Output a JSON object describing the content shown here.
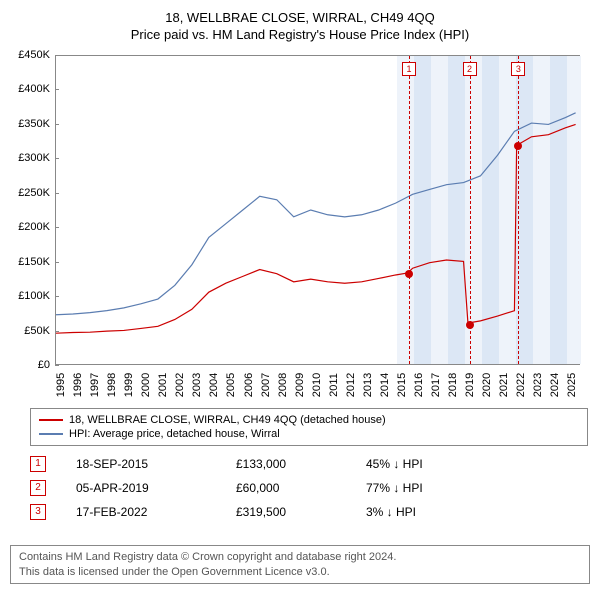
{
  "title": "18, WELLBRAE CLOSE, WIRRAL, CH49 4QQ",
  "subtitle": "Price paid vs. HM Land Registry's House Price Index (HPI)",
  "chart": {
    "ylim": [
      0,
      450000
    ],
    "ytick_step": 50000,
    "yticks": [
      "£0",
      "£50K",
      "£100K",
      "£150K",
      "£200K",
      "£250K",
      "£300K",
      "£350K",
      "£400K",
      "£450K"
    ],
    "xlim": [
      1995,
      2025.8
    ],
    "xticks": [
      1995,
      1996,
      1997,
      1998,
      1999,
      2000,
      2001,
      2002,
      2003,
      2004,
      2005,
      2006,
      2007,
      2008,
      2009,
      2010,
      2011,
      2012,
      2013,
      2014,
      2015,
      2016,
      2017,
      2018,
      2019,
      2020,
      2021,
      2022,
      2023,
      2024,
      2025
    ],
    "background": "#ffffff",
    "border_color": "#888888",
    "hpi_line_color": "#5b7db1",
    "prop_line_color": "#cc0000",
    "dot_color": "#cc0000",
    "band_even": "#eef3fa",
    "band_odd": "#dce7f5",
    "dash_color": "#cc0000",
    "line_width": 1.2,
    "title_fontsize": 13,
    "axis_fontsize": 11,
    "hpi_series": [
      [
        1995,
        72000
      ],
      [
        1996,
        73000
      ],
      [
        1997,
        75000
      ],
      [
        1998,
        78000
      ],
      [
        1999,
        82000
      ],
      [
        2000,
        88000
      ],
      [
        2001,
        95000
      ],
      [
        2002,
        115000
      ],
      [
        2003,
        145000
      ],
      [
        2004,
        185000
      ],
      [
        2005,
        205000
      ],
      [
        2006,
        225000
      ],
      [
        2007,
        245000
      ],
      [
        2008,
        240000
      ],
      [
        2009,
        215000
      ],
      [
        2010,
        225000
      ],
      [
        2011,
        218000
      ],
      [
        2012,
        215000
      ],
      [
        2013,
        218000
      ],
      [
        2014,
        225000
      ],
      [
        2015,
        235000
      ],
      [
        2016,
        248000
      ],
      [
        2017,
        255000
      ],
      [
        2018,
        262000
      ],
      [
        2019,
        265000
      ],
      [
        2020,
        275000
      ],
      [
        2021,
        305000
      ],
      [
        2022,
        340000
      ],
      [
        2023,
        352000
      ],
      [
        2024,
        350000
      ],
      [
        2025,
        360000
      ],
      [
        2025.6,
        367000
      ]
    ],
    "prop_series": [
      [
        1995,
        45000
      ],
      [
        1996,
        46000
      ],
      [
        1997,
        46500
      ],
      [
        1998,
        48000
      ],
      [
        1999,
        49000
      ],
      [
        2000,
        52000
      ],
      [
        2001,
        55000
      ],
      [
        2002,
        65000
      ],
      [
        2003,
        80000
      ],
      [
        2004,
        105000
      ],
      [
        2005,
        118000
      ],
      [
        2006,
        128000
      ],
      [
        2007,
        138000
      ],
      [
        2008,
        132000
      ],
      [
        2009,
        120000
      ],
      [
        2010,
        124000
      ],
      [
        2011,
        120000
      ],
      [
        2012,
        118000
      ],
      [
        2013,
        120000
      ],
      [
        2014,
        125000
      ],
      [
        2015,
        130000
      ],
      [
        2015.71,
        133000
      ],
      [
        2016,
        140000
      ],
      [
        2017,
        148000
      ],
      [
        2018,
        152000
      ],
      [
        2019,
        150000
      ],
      [
        2019.26,
        60000
      ],
      [
        2019.27,
        60000
      ],
      [
        2020,
        63000
      ],
      [
        2021,
        70000
      ],
      [
        2022,
        78000
      ],
      [
        2022.13,
        319500
      ],
      [
        2022.14,
        319500
      ],
      [
        2023,
        332000
      ],
      [
        2024,
        335000
      ],
      [
        2025,
        345000
      ],
      [
        2025.6,
        350000
      ]
    ],
    "transaction_markers": [
      {
        "num": "1",
        "x": 2015.71,
        "y": 133000
      },
      {
        "num": "2",
        "x": 2019.26,
        "y": 60000
      },
      {
        "num": "3",
        "x": 2022.13,
        "y": 319500
      }
    ]
  },
  "legend": {
    "items": [
      {
        "color": "#cc0000",
        "label": "18, WELLBRAE CLOSE, WIRRAL, CH49 4QQ (detached house)"
      },
      {
        "color": "#5b7db1",
        "label": "HPI: Average price, detached house, Wirral"
      }
    ]
  },
  "transactions": [
    {
      "num": "1",
      "date": "18-SEP-2015",
      "price": "£133,000",
      "hpi": "45% ↓ HPI"
    },
    {
      "num": "2",
      "date": "05-APR-2019",
      "price": "£60,000",
      "hpi": "77% ↓ HPI"
    },
    {
      "num": "3",
      "date": "17-FEB-2022",
      "price": "£319,500",
      "hpi": "3% ↓ HPI"
    }
  ],
  "footer": {
    "line1": "Contains HM Land Registry data © Crown copyright and database right 2024.",
    "line2": "This data is licensed under the Open Government Licence v3.0."
  }
}
